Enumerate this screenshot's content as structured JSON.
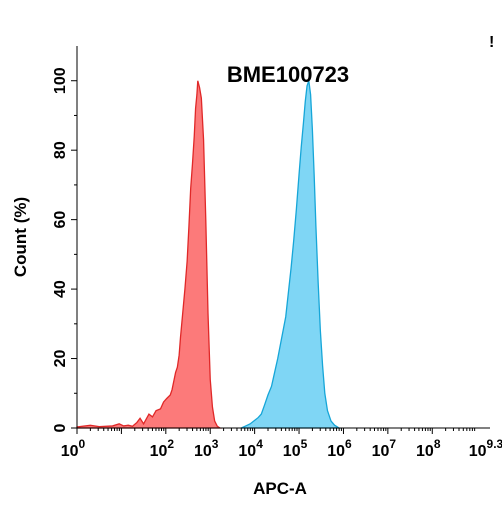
{
  "chart_data": {
    "type": "area",
    "title": "BME100723",
    "xlabel": "APC-A",
    "ylabel": "Count  (%)",
    "x_scale": "log10",
    "xlim": [
      0,
      9.3
    ],
    "ylim": [
      0,
      110
    ],
    "x_ticks": [
      {
        "base": "10",
        "exp": "0",
        "value": 0
      },
      {
        "base": "10",
        "exp": "2",
        "value": 2
      },
      {
        "base": "10",
        "exp": "3",
        "value": 3
      },
      {
        "base": "10",
        "exp": "4",
        "value": 4
      },
      {
        "base": "10",
        "exp": "5",
        "value": 5
      },
      {
        "base": "10",
        "exp": "6",
        "value": 6
      },
      {
        "base": "10",
        "exp": "7",
        "value": 7
      },
      {
        "base": "10",
        "exp": "8",
        "value": 8
      },
      {
        "base": "10",
        "exp": "9.3",
        "value": 9.3
      }
    ],
    "y_ticks": [
      "0",
      "20",
      "40",
      "60",
      "80",
      "100"
    ],
    "series": [
      {
        "color": "#fc7a7a",
        "stroke": "#e02828",
        "points": [
          [
            0.0,
            0.3
          ],
          [
            0.3,
            0.8
          ],
          [
            0.5,
            0.4
          ],
          [
            0.8,
            0.6
          ],
          [
            0.95,
            1.2
          ],
          [
            1.05,
            0.6
          ],
          [
            1.15,
            0.8
          ],
          [
            1.25,
            0.5
          ],
          [
            1.35,
            1.6
          ],
          [
            1.42,
            2.8
          ],
          [
            1.5,
            1.2
          ],
          [
            1.62,
            4.0
          ],
          [
            1.7,
            3.2
          ],
          [
            1.78,
            5.0
          ],
          [
            1.88,
            5.5
          ],
          [
            1.95,
            7.5
          ],
          [
            2.02,
            8.5
          ],
          [
            2.1,
            9.5
          ],
          [
            2.14,
            11.0
          ],
          [
            2.18,
            13.5
          ],
          [
            2.22,
            16.0
          ],
          [
            2.26,
            17.5
          ],
          [
            2.3,
            21.0
          ],
          [
            2.33,
            26.0
          ],
          [
            2.38,
            33.0
          ],
          [
            2.43,
            40.0
          ],
          [
            2.48,
            48.0
          ],
          [
            2.52,
            58.0
          ],
          [
            2.56,
            69.0
          ],
          [
            2.6,
            76.0
          ],
          [
            2.64,
            84.0
          ],
          [
            2.67,
            92.0
          ],
          [
            2.7,
            96.0
          ],
          [
            2.72,
            100.0
          ],
          [
            2.76,
            98.0
          ],
          [
            2.8,
            95.0
          ],
          [
            2.85,
            83.0
          ],
          [
            2.9,
            60.0
          ],
          [
            2.95,
            33.0
          ],
          [
            3.0,
            14.0
          ],
          [
            3.05,
            6.0
          ],
          [
            3.1,
            2.0
          ],
          [
            3.16,
            0.5
          ],
          [
            3.22,
            0.0
          ]
        ]
      },
      {
        "color": "#7fd6f5",
        "stroke": "#16a6d8",
        "points": [
          [
            3.7,
            0.0
          ],
          [
            3.8,
            0.6
          ],
          [
            3.9,
            1.2
          ],
          [
            4.0,
            2.2
          ],
          [
            4.08,
            3.0
          ],
          [
            4.15,
            4.0
          ],
          [
            4.22,
            6.5
          ],
          [
            4.3,
            9.5
          ],
          [
            4.38,
            12.0
          ],
          [
            4.45,
            16.0
          ],
          [
            4.52,
            20.0
          ],
          [
            4.58,
            24.0
          ],
          [
            4.64,
            28.0
          ],
          [
            4.7,
            32.0
          ],
          [
            4.76,
            39.0
          ],
          [
            4.82,
            46.0
          ],
          [
            4.88,
            54.0
          ],
          [
            4.94,
            63.0
          ],
          [
            5.0,
            73.0
          ],
          [
            5.05,
            81.0
          ],
          [
            5.1,
            88.0
          ],
          [
            5.14,
            94.0
          ],
          [
            5.18,
            98.5
          ],
          [
            5.22,
            100.0
          ],
          [
            5.26,
            96.0
          ],
          [
            5.3,
            86.0
          ],
          [
            5.34,
            73.0
          ],
          [
            5.38,
            58.0
          ],
          [
            5.43,
            42.0
          ],
          [
            5.48,
            28.0
          ],
          [
            5.53,
            18.0
          ],
          [
            5.58,
            10.0
          ],
          [
            5.64,
            5.0
          ],
          [
            5.72,
            2.0
          ],
          [
            5.8,
            0.8
          ],
          [
            5.9,
            0.0
          ]
        ]
      }
    ],
    "corner_mark": "!"
  }
}
